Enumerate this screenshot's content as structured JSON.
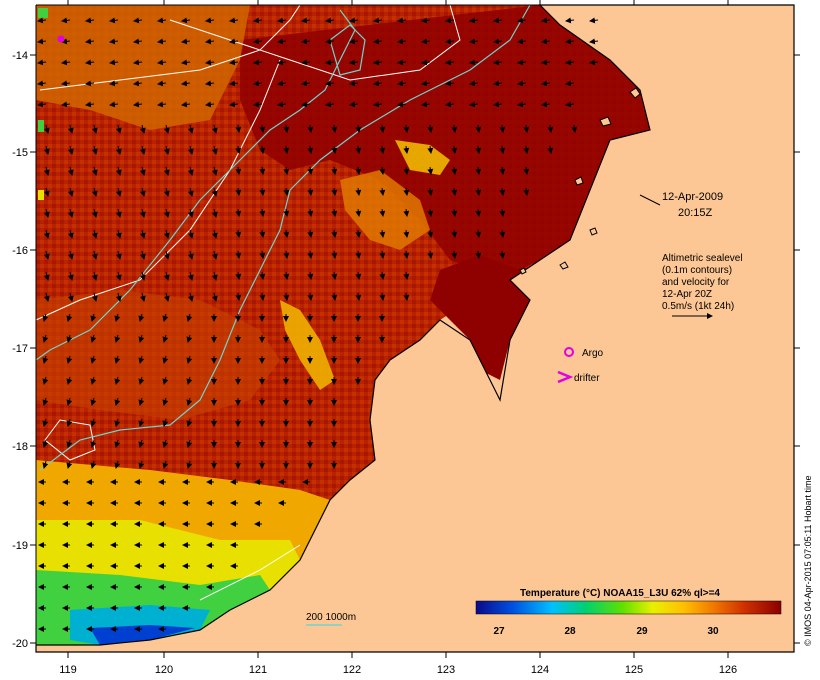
{
  "map": {
    "x_ticks": [
      "119",
      "120",
      "121",
      "122",
      "123",
      "124",
      "125",
      "126"
    ],
    "y_ticks": [
      "-14",
      "-15",
      "-16",
      "-17",
      "-18",
      "-19",
      "-20"
    ],
    "date": "12-Apr-2009",
    "time": "20:15Z",
    "altimetry_lines": [
      "Altimetric sealevel",
      "(0.1m contours)",
      "and velocity for",
      "12-Apr 20Z",
      "0.5m/s (1kt 24h)"
    ],
    "argo_label": "Argo",
    "drifter_label": "drifter",
    "bathymetry_label": "200  1000m",
    "legend": {
      "title": "Temperature (°C) NOAA15_L3U 62% ql>=4",
      "ticks": [
        "27",
        "28",
        "29",
        "30"
      ]
    },
    "credit": "© IMOS 04-Apr-2015 07:05:11 Hobart time",
    "colors": {
      "land": "#fcc795",
      "sea_warm": "#b81d00",
      "sea_hot": "#8a0000",
      "argo": "#e000e0",
      "contour_200": "#6fd3cf",
      "contour_ssh": "#ffffff"
    }
  }
}
